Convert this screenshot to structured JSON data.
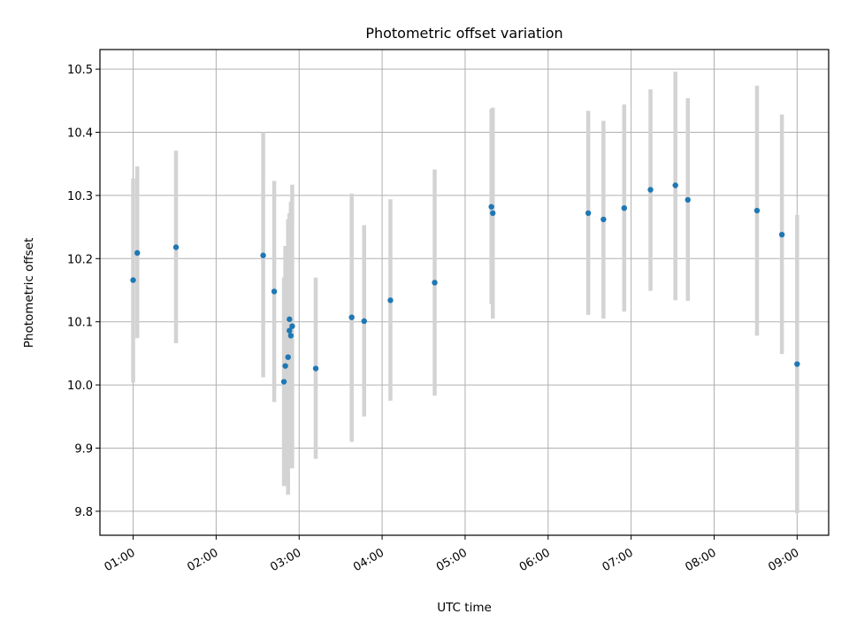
{
  "chart_data": {
    "type": "scatter",
    "title": "Photometric offset variation",
    "xlabel": "UTC time",
    "ylabel": "Photometric offset",
    "x_ticks": [
      "01:00",
      "02:00",
      "03:00",
      "04:00",
      "05:00",
      "06:00",
      "07:00",
      "08:00",
      "09:00"
    ],
    "x_tick_values_hours": [
      1,
      2,
      3,
      4,
      5,
      6,
      7,
      8,
      9
    ],
    "y_ticks": [
      "9.8",
      "9.9",
      "10.0",
      "10.1",
      "10.2",
      "10.3",
      "10.4",
      "10.5"
    ],
    "ylim": [
      9.762,
      10.531
    ],
    "xlim_hours": [
      0.6,
      9.38
    ],
    "grid": true,
    "marker_color": "#1f77b4",
    "errorbar_color": "#d3d3d3",
    "points": [
      {
        "time": "01:00",
        "y": 10.166,
        "err_low": 10.004,
        "err_high": 10.327
      },
      {
        "time": "01:03",
        "y": 10.209,
        "err_low": 10.074,
        "err_high": 10.346
      },
      {
        "time": "01:31",
        "y": 10.218,
        "err_low": 10.066,
        "err_high": 10.371
      },
      {
        "time": "02:34",
        "y": 10.205,
        "err_low": 10.012,
        "err_high": 10.4
      },
      {
        "time": "02:42",
        "y": 10.148,
        "err_low": 9.973,
        "err_high": 10.323
      },
      {
        "time": "02:49",
        "y": 10.005,
        "err_low": 9.84,
        "err_high": 10.17
      },
      {
        "time": "02:50",
        "y": 10.03,
        "err_low": 9.84,
        "err_high": 10.22
      },
      {
        "time": "02:52",
        "y": 10.044,
        "err_low": 9.826,
        "err_high": 10.262
      },
      {
        "time": "02:53",
        "y": 10.104,
        "err_low": 9.94,
        "err_high": 10.262
      },
      {
        "time": "02:53",
        "y": 10.086,
        "err_low": 9.9,
        "err_high": 10.272
      },
      {
        "time": "02:54",
        "y": 10.078,
        "err_low": 9.87,
        "err_high": 10.29
      },
      {
        "time": "02:55",
        "y": 10.093,
        "err_low": 9.868,
        "err_high": 10.317
      },
      {
        "time": "03:12",
        "y": 10.026,
        "err_low": 9.883,
        "err_high": 10.17
      },
      {
        "time": "03:38",
        "y": 10.107,
        "err_low": 9.91,
        "err_high": 10.303
      },
      {
        "time": "03:47",
        "y": 10.101,
        "err_low": 9.95,
        "err_high": 10.253
      },
      {
        "time": "04:06",
        "y": 10.134,
        "err_low": 9.975,
        "err_high": 10.294
      },
      {
        "time": "04:38",
        "y": 10.162,
        "err_low": 9.983,
        "err_high": 10.341
      },
      {
        "time": "05:19",
        "y": 10.282,
        "err_low": 10.128,
        "err_high": 10.437
      },
      {
        "time": "05:20",
        "y": 10.272,
        "err_low": 10.105,
        "err_high": 10.439
      },
      {
        "time": "06:29",
        "y": 10.272,
        "err_low": 10.111,
        "err_high": 10.434
      },
      {
        "time": "06:40",
        "y": 10.262,
        "err_low": 10.105,
        "err_high": 10.418
      },
      {
        "time": "06:55",
        "y": 10.28,
        "err_low": 10.116,
        "err_high": 10.444
      },
      {
        "time": "07:14",
        "y": 10.309,
        "err_low": 10.149,
        "err_high": 10.468
      },
      {
        "time": "07:32",
        "y": 10.316,
        "err_low": 10.134,
        "err_high": 10.496
      },
      {
        "time": "07:41",
        "y": 10.293,
        "err_low": 10.133,
        "err_high": 10.454
      },
      {
        "time": "08:31",
        "y": 10.276,
        "err_low": 10.078,
        "err_high": 10.474
      },
      {
        "time": "08:49",
        "y": 10.238,
        "err_low": 10.049,
        "err_high": 10.428
      },
      {
        "time": "09:00",
        "y": 10.033,
        "err_low": 9.797,
        "err_high": 10.269
      }
    ]
  }
}
